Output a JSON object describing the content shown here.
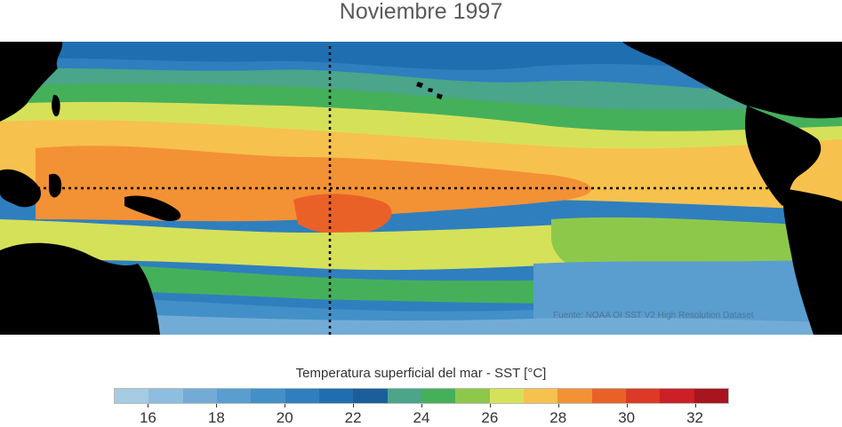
{
  "title": "Noviembre 1997",
  "credit": "Fuente: NOAA OI SST V2 High Resolution Dataset",
  "colorbar": {
    "label": "Temperatura superficial del mar - SST  [°C]",
    "unit": "°C",
    "range": [
      15,
      33
    ],
    "colors": [
      "#a6cbe3",
      "#8dbddf",
      "#72acd6",
      "#5a9dcf",
      "#4390c8",
      "#2f7fbe",
      "#1f6fb0",
      "#1a5f9c",
      "#4aa58a",
      "#45b05a",
      "#8ec84b",
      "#d6e15a",
      "#f7c14d",
      "#f39135",
      "#ea6127",
      "#dc3a26",
      "#cc1f26",
      "#a8151f"
    ],
    "ticks": [
      "16",
      "18",
      "20",
      "22",
      "24",
      "26",
      "28",
      "30",
      "32"
    ]
  },
  "map": {
    "lon_range": [
      100,
      290
    ],
    "lat_range": [
      -33,
      33
    ],
    "dotted_lines": [
      {
        "type": "equator",
        "lat": 0
      },
      {
        "type": "meridian",
        "lon": 180
      }
    ],
    "warm_pool_center": "western-central equatorial Pacific",
    "max_sst_region": "central equatorial Pacific (~30 °C)",
    "land_color": "#000000"
  }
}
